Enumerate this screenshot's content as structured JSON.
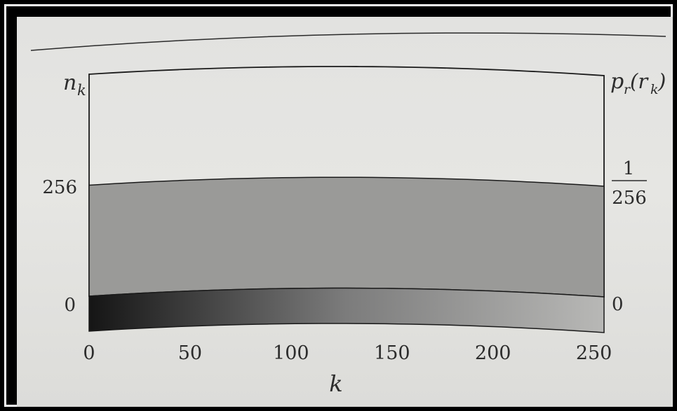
{
  "chart_data": {
    "type": "area",
    "title": "",
    "x": [
      0,
      255
    ],
    "n_k": [
      256,
      256
    ],
    "x_ticks": [
      "0",
      "50",
      "100",
      "150",
      "200",
      "250"
    ],
    "x_tick_values": [
      0,
      50,
      100,
      150,
      200,
      250
    ],
    "xlabel": "k",
    "ylabel_left": "n",
    "ylabel_left_sub": "k",
    "ylabel_right": "p",
    "ylabel_right_sub": "r",
    "ylabel_right_arg": "(r",
    "ylabel_right_arg_sub": "k",
    "ylabel_right_close": ")",
    "y_ticks_left": [
      "256",
      "0"
    ],
    "y_tick_values_left": [
      256,
      0
    ],
    "y_ticks_right": [
      {
        "numerator": "1",
        "denominator": "256"
      },
      {
        "value": "0"
      }
    ],
    "xlim": [
      0,
      255
    ],
    "ylim": [
      0,
      512
    ],
    "colorbar": {
      "from_gray_level": 0,
      "to_gray_level": 255
    },
    "colors": {
      "fill": "#9a9a98",
      "line": "#1a1a1a",
      "photo_bg": "#e3e3e0",
      "frame": "#ffffff"
    }
  }
}
